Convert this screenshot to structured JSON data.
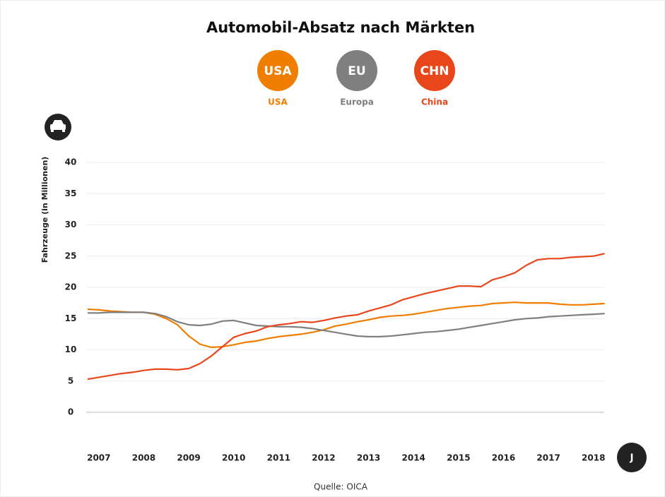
{
  "chart_data": {
    "type": "line",
    "title": "Automobil-Absatz nach Märkten",
    "y_label": "Fahrzeuge (in Millionen)",
    "source": "Quelle: OICA",
    "x_unit_badge": "J",
    "x": [
      2006.75,
      2007,
      2007.25,
      2007.5,
      2007.75,
      2008,
      2008.25,
      2008.5,
      2008.75,
      2009,
      2009.25,
      2009.5,
      2009.75,
      2010,
      2010.25,
      2010.5,
      2010.75,
      2011,
      2011.25,
      2011.5,
      2011.75,
      2012,
      2012.25,
      2012.5,
      2012.75,
      2013,
      2013.25,
      2013.5,
      2013.75,
      2014,
      2014.25,
      2014.5,
      2014.75,
      2015,
      2015.25,
      2015.5,
      2015.75,
      2016,
      2016.25,
      2016.5,
      2016.75,
      2017,
      2017.25,
      2017.5,
      2017.75,
      2018,
      2018.25
    ],
    "series": [
      {
        "name": "USA",
        "badge": "USA",
        "color": "#ef7d00",
        "values": [
          16.5,
          16.4,
          16.2,
          16.1,
          16.0,
          16.0,
          15.7,
          15.0,
          14.0,
          12.2,
          10.9,
          10.4,
          10.5,
          10.8,
          11.2,
          11.4,
          11.8,
          12.1,
          12.3,
          12.5,
          12.8,
          13.2,
          13.8,
          14.1,
          14.5,
          14.8,
          15.2,
          15.4,
          15.5,
          15.7,
          16.0,
          16.3,
          16.6,
          16.8,
          17.0,
          17.1,
          17.4,
          17.5,
          17.6,
          17.5,
          17.5,
          17.5,
          17.3,
          17.2,
          17.2,
          17.3,
          17.4
        ]
      },
      {
        "name": "Europa",
        "badge": "EU",
        "color": "#7f7f7f",
        "values": [
          15.9,
          15.9,
          16.0,
          16.0,
          16.0,
          16.0,
          15.8,
          15.3,
          14.5,
          14.0,
          13.9,
          14.1,
          14.6,
          14.7,
          14.3,
          13.9,
          13.8,
          13.7,
          13.7,
          13.6,
          13.4,
          13.1,
          12.8,
          12.5,
          12.2,
          12.1,
          12.1,
          12.2,
          12.4,
          12.6,
          12.8,
          12.9,
          13.1,
          13.3,
          13.6,
          13.9,
          14.2,
          14.5,
          14.8,
          15.0,
          15.1,
          15.3,
          15.4,
          15.5,
          15.6,
          15.7,
          15.8
        ]
      },
      {
        "name": "China",
        "badge": "CHN",
        "color": "#e8461b",
        "values": [
          5.3,
          5.6,
          5.9,
          6.2,
          6.4,
          6.7,
          6.9,
          6.9,
          6.8,
          7.0,
          7.8,
          9.0,
          10.5,
          12.0,
          12.6,
          13.0,
          13.7,
          14.0,
          14.2,
          14.5,
          14.4,
          14.7,
          15.1,
          15.4,
          15.6,
          16.2,
          16.7,
          17.2,
          18.0,
          18.5,
          19.0,
          19.4,
          19.8,
          20.2,
          20.2,
          20.1,
          21.2,
          21.7,
          22.3,
          23.5,
          24.4,
          24.6,
          24.6,
          24.8,
          24.9,
          25.0,
          25.4
        ]
      }
    ],
    "xlim": [
      2006.72,
      2018.24
    ],
    "xticks": [
      2007,
      2008,
      2009,
      2010,
      2011,
      2012,
      2013,
      2014,
      2015,
      2016,
      2017,
      2018
    ],
    "ylim": [
      0,
      40
    ],
    "yticks": [
      0,
      5,
      10,
      15,
      20,
      25,
      30,
      35,
      40
    ],
    "grid": true
  }
}
